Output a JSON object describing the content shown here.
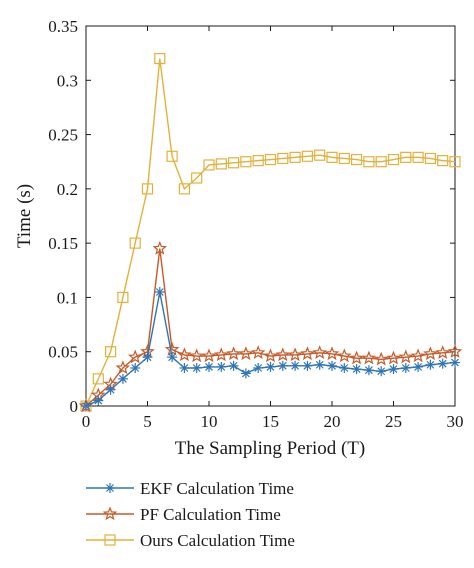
{
  "chart_data": {
    "type": "line",
    "xlabel": "The Sampling Period (T)",
    "ylabel": "Time (s)",
    "xlim": [
      0,
      30
    ],
    "ylim": [
      0,
      0.35
    ],
    "xticks": [
      "0",
      "5",
      "10",
      "15",
      "20",
      "25",
      "30"
    ],
    "yticks": [
      "0",
      "0.05",
      "0.1",
      "0.15",
      "0.2",
      "0.25",
      "0.3",
      "0.35"
    ],
    "grid": false,
    "legend_position": "bottom",
    "x": [
      0,
      1,
      2,
      3,
      4,
      5,
      6,
      7,
      8,
      9,
      10,
      11,
      12,
      13,
      14,
      15,
      16,
      17,
      18,
      19,
      20,
      21,
      22,
      23,
      24,
      25,
      26,
      27,
      28,
      29,
      30
    ],
    "series": [
      {
        "name": "EKF Calculation Time",
        "color": "#2e75b6",
        "marker": "asterisk",
        "values": [
          0,
          0.005,
          0.015,
          0.025,
          0.035,
          0.045,
          0.105,
          0.045,
          0.035,
          0.035,
          0.036,
          0.036,
          0.037,
          0.03,
          0.035,
          0.036,
          0.037,
          0.037,
          0.037,
          0.038,
          0.037,
          0.035,
          0.034,
          0.033,
          0.032,
          0.034,
          0.035,
          0.036,
          0.038,
          0.039,
          0.04
        ]
      },
      {
        "name": "PF Calculation Time",
        "color": "#c55a28",
        "marker": "star",
        "values": [
          0,
          0.01,
          0.02,
          0.035,
          0.045,
          0.05,
          0.145,
          0.052,
          0.047,
          0.046,
          0.046,
          0.047,
          0.048,
          0.048,
          0.049,
          0.046,
          0.047,
          0.047,
          0.048,
          0.049,
          0.048,
          0.046,
          0.044,
          0.044,
          0.043,
          0.044,
          0.045,
          0.046,
          0.048,
          0.049,
          0.05
        ]
      },
      {
        "name": "Ours Calculation Time",
        "color": "#e2b13c",
        "marker": "square",
        "values": [
          0,
          0.025,
          0.05,
          0.1,
          0.15,
          0.2,
          0.32,
          0.23,
          0.2,
          0.21,
          0.222,
          0.223,
          0.224,
          0.225,
          0.226,
          0.227,
          0.228,
          0.229,
          0.23,
          0.231,
          0.229,
          0.228,
          0.227,
          0.225,
          0.225,
          0.227,
          0.229,
          0.229,
          0.228,
          0.226,
          0.225
        ]
      }
    ]
  }
}
